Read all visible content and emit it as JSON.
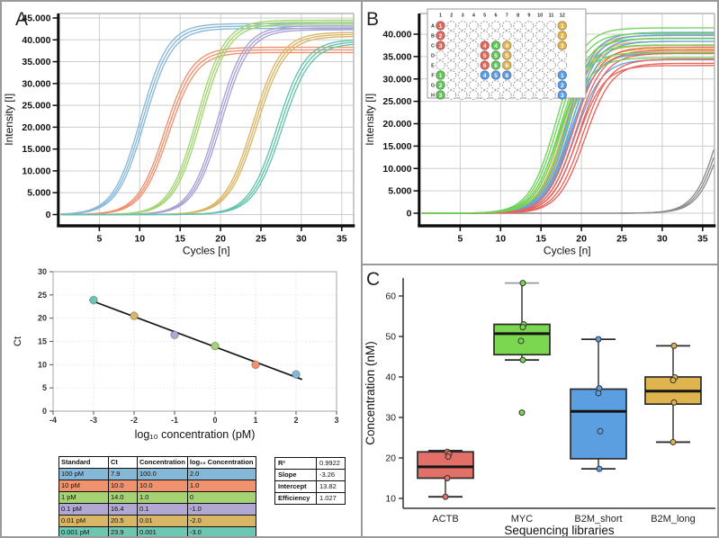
{
  "labels": {
    "a": "A",
    "b": "B",
    "c": "C"
  },
  "chart_data": [
    {
      "id": "A",
      "type": "line",
      "xlabel": "Cycles [n]",
      "ylabel": "Intensity [I]",
      "xlim": [
        0.3,
        36.4
      ],
      "ylim": [
        0,
        45000
      ],
      "grid": true,
      "x_ticks": [
        "5",
        "10",
        "15",
        "20",
        "25",
        "30",
        "35"
      ],
      "y_ticks": [
        {
          "v": 0,
          "label": "0"
        },
        {
          "v": 5000,
          "label": "5.000"
        },
        {
          "v": 10000,
          "label": "10.000"
        },
        {
          "v": 15000,
          "label": "15.000"
        },
        {
          "v": 20000,
          "label": "20.000"
        },
        {
          "v": 25000,
          "label": "25.000"
        },
        {
          "v": 30000,
          "label": "30.000"
        },
        {
          "v": 35000,
          "label": "35.000"
        },
        {
          "v": 40000,
          "label": "40.000"
        },
        {
          "v": 45000,
          "label": "45.000"
        }
      ],
      "series": [
        {
          "name": "100 pM",
          "color": "#85B7DA",
          "slope_k": 1.7,
          "curves": [
            {
              "mid": 10.1,
              "plateau": 43700
            },
            {
              "mid": 10.35,
              "plateau": 43150
            },
            {
              "mid": 10.6,
              "plateau": 42600
            }
          ]
        },
        {
          "name": "10 pM",
          "color": "#F08F6C",
          "slope_k": 1.7,
          "curves": [
            {
              "mid": 13.1,
              "plateau": 38300
            },
            {
              "mid": 13.35,
              "plateau": 37700
            },
            {
              "mid": 13.6,
              "plateau": 37100
            }
          ]
        },
        {
          "name": "1 pM",
          "color": "#A2D46F",
          "slope_k": 1.7,
          "curves": [
            {
              "mid": 17.1,
              "plateau": 44500
            },
            {
              "mid": 17.35,
              "plateau": 44050
            },
            {
              "mid": 17.6,
              "plateau": 43600
            }
          ]
        },
        {
          "name": "0.1 pM",
          "color": "#A8A0D4",
          "slope_k": 1.7,
          "curves": [
            {
              "mid": 19.6,
              "plateau": 43200
            },
            {
              "mid": 19.85,
              "plateau": 42750
            },
            {
              "mid": 20.1,
              "plateau": 42300
            }
          ]
        },
        {
          "name": "0.01 pM",
          "color": "#DAB463",
          "slope_k": 1.75,
          "curves": [
            {
              "mid": 24.0,
              "plateau": 41700
            },
            {
              "mid": 24.25,
              "plateau": 41250
            },
            {
              "mid": 24.5,
              "plateau": 40800
            }
          ]
        },
        {
          "name": "0.001 pM",
          "color": "#62C3AD",
          "slope_k": 1.75,
          "curves": [
            {
              "mid": 27.0,
              "plateau": 40100
            },
            {
              "mid": 27.3,
              "plateau": 39650
            },
            {
              "mid": 27.6,
              "plateau": 39200
            }
          ]
        }
      ]
    },
    {
      "id": "B",
      "type": "line",
      "xlabel": "Cycles [n]",
      "ylabel": "Intensity [I]",
      "xlim": [
        0.3,
        36.4
      ],
      "ylim": [
        0,
        40000
      ],
      "grid": true,
      "x_ticks": [
        "5",
        "10",
        "15",
        "20",
        "25",
        "30",
        "35"
      ],
      "y_ticks": [
        {
          "v": 0,
          "label": "0"
        },
        {
          "v": 5000,
          "label": "5.000"
        },
        {
          "v": 10000,
          "label": "10.000"
        },
        {
          "v": 15000,
          "label": "15.000"
        },
        {
          "v": 20000,
          "label": "20.000"
        },
        {
          "v": 25000,
          "label": "25.000"
        },
        {
          "v": 30000,
          "label": "30.000"
        },
        {
          "v": 35000,
          "label": "35.000"
        },
        {
          "v": 40000,
          "label": "40.000"
        }
      ],
      "series": [
        {
          "name": "ntc-grey-curves",
          "color": "#8c8c8c",
          "slope_k": 1.55,
          "curves": [
            {
              "mid": 37.3,
              "plateau": 40000
            },
            {
              "mid": 37.6,
              "plateau": 40000
            },
            {
              "mid": 37.9,
              "plateau": 40000
            }
          ]
        },
        {
          "name": "gold-curves",
          "color": "#DDB44F",
          "slope_k": 1.65,
          "curves": [
            {
              "mid": 17.7,
              "plateau": 39700
            },
            {
              "mid": 17.95,
              "plateau": 39100
            },
            {
              "mid": 18.2,
              "plateau": 38400
            },
            {
              "mid": 18.05,
              "plateau": 37500
            },
            {
              "mid": 18.45,
              "plateau": 36700
            },
            {
              "mid": 18.7,
              "plateau": 36000
            }
          ]
        },
        {
          "name": "blue-curves",
          "color": "#62A1E5",
          "slope_k": 1.65,
          "curves": [
            {
              "mid": 18.2,
              "plateau": 40400
            },
            {
              "mid": 18.45,
              "plateau": 39800
            },
            {
              "mid": 18.7,
              "plateau": 39100
            },
            {
              "mid": 18.95,
              "plateau": 38400
            },
            {
              "mid": 18.6,
              "plateau": 35700
            },
            {
              "mid": 19.2,
              "plateau": 34300
            }
          ]
        },
        {
          "name": "red-curves",
          "color": "#E8635A",
          "slope_k": 1.65,
          "curves": [
            {
              "mid": 19.0,
              "plateau": 37100
            },
            {
              "mid": 19.3,
              "plateau": 36400
            },
            {
              "mid": 19.7,
              "plateau": 35700
            },
            {
              "mid": 20.1,
              "plateau": 34400
            },
            {
              "mid": 20.45,
              "plateau": 33500
            },
            {
              "mid": 19.5,
              "plateau": 33000
            }
          ]
        },
        {
          "name": "green-curves",
          "color": "#6FD35B",
          "slope_k": 1.65,
          "curves": [
            {
              "mid": 16.9,
              "plateau": 41400
            },
            {
              "mid": 17.15,
              "plateau": 40200
            },
            {
              "mid": 17.4,
              "plateau": 39000
            },
            {
              "mid": 17.6,
              "plateau": 37600
            },
            {
              "mid": 17.25,
              "plateau": 35900
            },
            {
              "mid": 17.85,
              "plateau": 34700
            }
          ]
        }
      ],
      "plate": {
        "col_labels": [
          "1",
          "2",
          "3",
          "4",
          "5",
          "6",
          "7",
          "8",
          "9",
          "10",
          "11",
          "12"
        ],
        "row_labels": [
          "A",
          "B",
          "C",
          "D",
          "E",
          "F",
          "G",
          "H"
        ],
        "well_colors": {
          "red": "#E0685C",
          "green": "#5FC854",
          "gold": "#E2B54E",
          "blue": "#5B9CE6"
        },
        "filled_wells": [
          {
            "row": "A",
            "col": "1",
            "color": "red",
            "label": "1"
          },
          {
            "row": "B",
            "col": "1",
            "color": "red",
            "label": "2"
          },
          {
            "row": "C",
            "col": "1",
            "color": "red",
            "label": "3"
          },
          {
            "row": "C",
            "col": "5",
            "color": "red",
            "label": "4"
          },
          {
            "row": "D",
            "col": "5",
            "color": "red",
            "label": "5"
          },
          {
            "row": "E",
            "col": "5",
            "color": "red",
            "label": "6"
          },
          {
            "row": "F",
            "col": "1",
            "color": "green",
            "label": "1"
          },
          {
            "row": "G",
            "col": "1",
            "color": "green",
            "label": "2"
          },
          {
            "row": "H",
            "col": "1",
            "color": "green",
            "label": "3"
          },
          {
            "row": "C",
            "col": "6",
            "color": "green",
            "label": "4"
          },
          {
            "row": "D",
            "col": "6",
            "color": "green",
            "label": "5"
          },
          {
            "row": "E",
            "col": "6",
            "color": "green",
            "label": "6"
          },
          {
            "row": "A",
            "col": "12",
            "color": "gold",
            "label": "1"
          },
          {
            "row": "B",
            "col": "12",
            "color": "gold",
            "label": "2"
          },
          {
            "row": "C",
            "col": "12",
            "color": "gold",
            "label": "3"
          },
          {
            "row": "C",
            "col": "7",
            "color": "gold",
            "label": "4"
          },
          {
            "row": "D",
            "col": "7",
            "color": "gold",
            "label": "5"
          },
          {
            "row": "E",
            "col": "7",
            "color": "gold",
            "label": "6"
          },
          {
            "row": "F",
            "col": "5",
            "color": "blue",
            "label": "4"
          },
          {
            "row": "F",
            "col": "6",
            "color": "blue",
            "label": "5"
          },
          {
            "row": "F",
            "col": "7",
            "color": "blue",
            "label": "6"
          },
          {
            "row": "F",
            "col": "12",
            "color": "blue",
            "label": "1"
          },
          {
            "row": "G",
            "col": "12",
            "color": "blue",
            "label": "2"
          },
          {
            "row": "H",
            "col": "12",
            "color": "blue",
            "label": "3"
          }
        ]
      }
    },
    {
      "id": "standard_curve",
      "type": "scatter",
      "xlabel": "log₁₀ concentration (pM)",
      "ylabel": "Ct",
      "xlim": [
        -4,
        3
      ],
      "ylim": [
        0,
        30
      ],
      "grid": "dotted",
      "x_ticks": [
        "-4",
        "-3",
        "-2",
        "-1",
        "0",
        "1",
        "2",
        "3"
      ],
      "y_ticks": [
        "0",
        "5",
        "10",
        "15",
        "20",
        "25",
        "30"
      ],
      "points": [
        {
          "x": -3,
          "y": 23.9,
          "color": "#6BC7B1"
        },
        {
          "x": -2,
          "y": 20.5,
          "color": "#D9B666"
        },
        {
          "x": -1,
          "y": 16.4,
          "color": "#B1A8D3"
        },
        {
          "x": 0,
          "y": 14.0,
          "color": "#A5D374"
        },
        {
          "x": 1,
          "y": 10.0,
          "color": "#F0926E"
        },
        {
          "x": 2,
          "y": 7.9,
          "color": "#85B7D6"
        }
      ],
      "trendline": {
        "slope": -3.26,
        "intercept": 13.82,
        "x_start": -3.1,
        "x_end": 2.15,
        "color": "#1a1a1a"
      }
    },
    {
      "id": "C",
      "type": "box",
      "xlabel": "Sequencing libraries",
      "ylabel": "Concentration (nM)",
      "ylim": [
        8,
        66
      ],
      "y_ticks": [
        "10",
        "20",
        "30",
        "40",
        "50",
        "60"
      ],
      "categories": [
        "ACTB",
        "MYC",
        "B2M_short",
        "B2M_long"
      ],
      "boxes": [
        {
          "label": "ACTB",
          "color": "#E26F68",
          "whisker_low": 10.4,
          "q1": 15.0,
          "median": 17.8,
          "q3": 21.5,
          "whisker_high": 21.8,
          "points": [
            {
              "v": 21.5,
              "dx": 2
            },
            {
              "v": 21.0,
              "dx": 4
            },
            {
              "v": 20.3,
              "dx": 3
            },
            {
              "v": 15.0,
              "dx": 2
            },
            {
              "v": 10.4,
              "dx": 0
            }
          ],
          "outliers": []
        },
        {
          "label": "MYC",
          "color": "#7BD74F",
          "cap_high_color": "#9a9a9a",
          "whisker_low": 44.2,
          "q1": 45.5,
          "median": 50.7,
          "q3": 53.0,
          "whisker_high": 63.2,
          "points": [
            {
              "v": 63.2,
              "dx": 1
            },
            {
              "v": 53.0,
              "dx": 2
            },
            {
              "v": 52.3,
              "dx": 1
            },
            {
              "v": 48.9,
              "dx": -1
            },
            {
              "v": 44.2,
              "dx": 1
            }
          ],
          "outliers": [
            {
              "v": 31.2,
              "dx": 0
            }
          ]
        },
        {
          "label": "B2M_short",
          "color": "#5C9FE0",
          "whisker_low": 17.3,
          "q1": 19.8,
          "median": 31.5,
          "q3": 37.0,
          "whisker_high": 49.3,
          "points": [
            {
              "v": 49.3,
              "dx": 0
            },
            {
              "v": 37.2,
              "dx": 1
            },
            {
              "v": 36.0,
              "dx": 0
            },
            {
              "v": 26.6,
              "dx": 2
            },
            {
              "v": 17.3,
              "dx": 1
            }
          ],
          "outliers": []
        },
        {
          "label": "B2M_long",
          "color": "#DFB44E",
          "whisker_low": 23.9,
          "q1": 33.3,
          "median": 36.5,
          "q3": 40.0,
          "whisker_high": 47.7,
          "points": [
            {
              "v": 47.7,
              "dx": 1
            },
            {
              "v": 39.9,
              "dx": 2
            },
            {
              "v": 39.2,
              "dx": 0
            },
            {
              "v": 33.7,
              "dx": 1
            },
            {
              "v": 23.9,
              "dx": 0
            }
          ],
          "outliers": []
        }
      ]
    }
  ],
  "tables": {
    "standard": {
      "headers": [
        "Standard",
        "Ct",
        "Concentration",
        "log₁₀ Concentration"
      ],
      "rows": [
        {
          "cells": [
            "100 pM",
            "7.9",
            "100.0",
            "2.0"
          ],
          "color": "#85B7D6"
        },
        {
          "cells": [
            "10 pM",
            "10.0",
            "10.0",
            "1.0"
          ],
          "color": "#F0926E"
        },
        {
          "cells": [
            "1 pM",
            "14.0",
            "1.0",
            "0"
          ],
          "color": "#A5D374"
        },
        {
          "cells": [
            "0.1 pM",
            "16.4",
            "0.1",
            "-1.0"
          ],
          "color": "#B1A8D3"
        },
        {
          "cells": [
            "0.01 pM",
            "20.5",
            "0.01",
            "-2.0"
          ],
          "color": "#D9B666"
        },
        {
          "cells": [
            "0.001 pM",
            "23.9",
            "0.001",
            "-3.0"
          ],
          "color": "#6BC7B1"
        }
      ]
    },
    "stats": {
      "rows": [
        {
          "label": "R²",
          "value": "0.9922"
        },
        {
          "label": "Slope",
          "value": "-3.26"
        },
        {
          "label": "Intercept",
          "value": "13.82"
        },
        {
          "label": "Efficiency",
          "value": "1.027"
        }
      ]
    }
  }
}
